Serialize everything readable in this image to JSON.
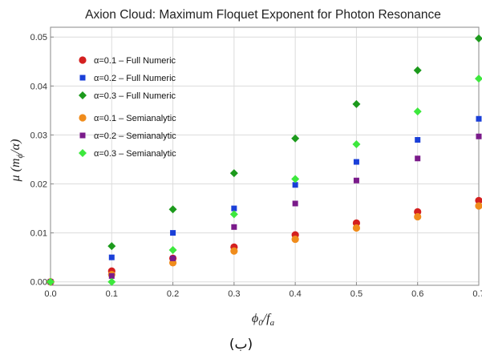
{
  "chart_data": {
    "type": "scatter",
    "title": "Axion Cloud: Maximum Floquet Exponent for Photon Resonance",
    "xlabel": "ϕ0/fa",
    "ylabel": "μ (mϕ/α)",
    "xlim": [
      0,
      0.7
    ],
    "ylim": [
      0,
      0.052
    ],
    "x_ticks": [
      "0.0",
      "0.1",
      "0.2",
      "0.3",
      "0.4",
      "0.5",
      "0.6",
      "0.7"
    ],
    "y_ticks": [
      "0.00",
      "0.01",
      "0.02",
      "0.03",
      "0.04",
      "0.05"
    ],
    "grid": true,
    "legend_placement": "top-left",
    "series": [
      {
        "name": "α=0.1 – Full Numeric",
        "marker": "circle",
        "color": "#d42020",
        "x": [
          0.0,
          0.1,
          0.2,
          0.3,
          0.4,
          0.5,
          0.6,
          0.7
        ],
        "y": [
          0.0,
          0.0022,
          0.0048,
          0.0071,
          0.0096,
          0.012,
          0.0143,
          0.0166
        ]
      },
      {
        "name": "α=0.2 – Full Numeric",
        "marker": "square",
        "color": "#1a3fd8",
        "x": [
          0.0,
          0.1,
          0.2,
          0.3,
          0.4,
          0.5,
          0.6,
          0.7
        ],
        "y": [
          0.0,
          0.005,
          0.01,
          0.015,
          0.0198,
          0.0245,
          0.029,
          0.0333
        ]
      },
      {
        "name": "α=0.3 – Full Numeric",
        "marker": "diamond",
        "color": "#1c9a1c",
        "x": [
          0.0,
          0.1,
          0.2,
          0.3,
          0.4,
          0.5,
          0.6,
          0.7
        ],
        "y": [
          0.0,
          0.0073,
          0.0148,
          0.0222,
          0.0293,
          0.0363,
          0.0432,
          0.0497
        ]
      },
      {
        "name": "α=0.1 – Semianalytic",
        "marker": "circle",
        "color": "#f08c1c",
        "x": [
          0.0,
          0.1,
          0.2,
          0.3,
          0.4,
          0.5,
          0.6,
          0.7
        ],
        "y": [
          0.0,
          0.0015,
          0.0039,
          0.0063,
          0.0087,
          0.011,
          0.0133,
          0.0155
        ]
      },
      {
        "name": "α=0.2 – Semianalytic",
        "marker": "square",
        "color": "#7a1a8a",
        "x": [
          0.0,
          0.1,
          0.2,
          0.3,
          0.4,
          0.5,
          0.6,
          0.7
        ],
        "y": [
          0.0,
          0.0012,
          0.0048,
          0.0112,
          0.016,
          0.0207,
          0.0252,
          0.0297
        ]
      },
      {
        "name": "α=0.3 – Semianalytic",
        "marker": "diamond",
        "color": "#3de83d",
        "x": [
          0.0,
          0.1,
          0.2,
          0.3,
          0.4,
          0.5,
          0.6,
          0.7
        ],
        "y": [
          0.0,
          0.0,
          0.0065,
          0.0138,
          0.021,
          0.0281,
          0.0348,
          0.0415
        ]
      }
    ]
  },
  "caption": "(ب)"
}
